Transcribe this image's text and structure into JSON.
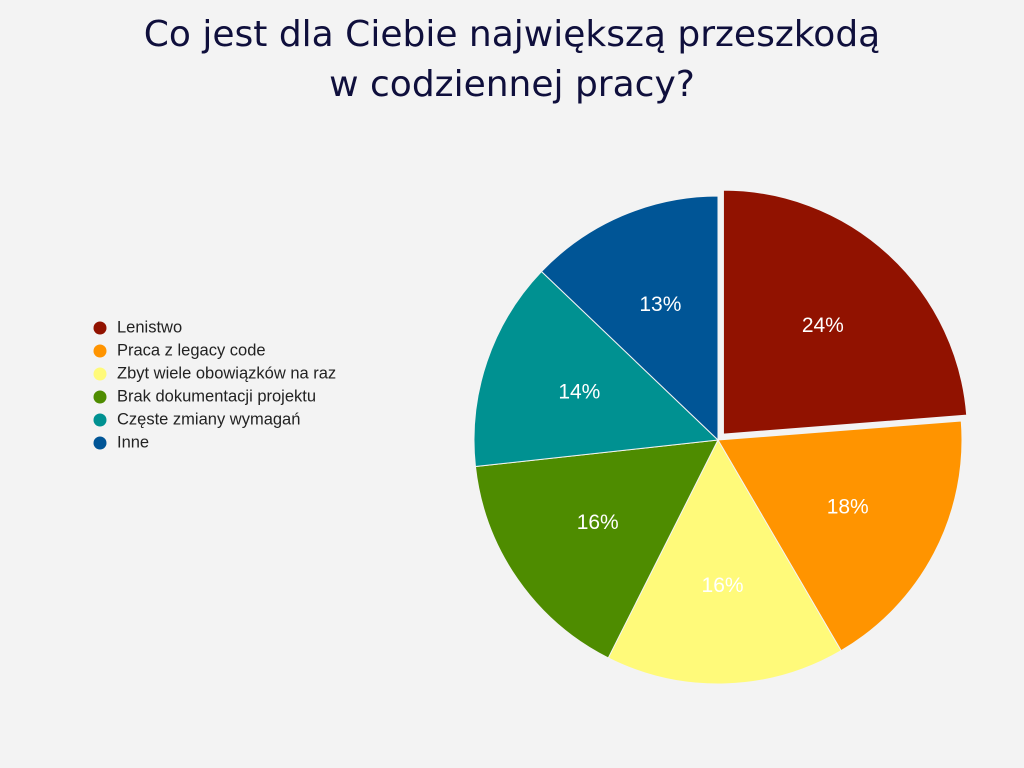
{
  "chart_data": {
    "type": "pie",
    "title": [
      "Co jest dla Ciebie największą przeszkodą",
      "w codziennej pracy?"
    ],
    "categories": [
      "Lenistwo",
      "Praca z legacy code",
      "Zbyt wiele obowiązków na raz",
      "Brak dokumentacji projektu",
      "Częste zmiany wymagań",
      "Inne"
    ],
    "values": [
      24,
      18,
      16,
      16,
      14,
      13
    ],
    "value_labels": [
      "24%",
      "18%",
      "16%",
      "16%",
      "14%",
      "13%"
    ],
    "colors": [
      "#911200",
      "#ff9400",
      "#fffa7a",
      "#4e8c00",
      "#009191",
      "#005596"
    ],
    "legend": "left"
  }
}
